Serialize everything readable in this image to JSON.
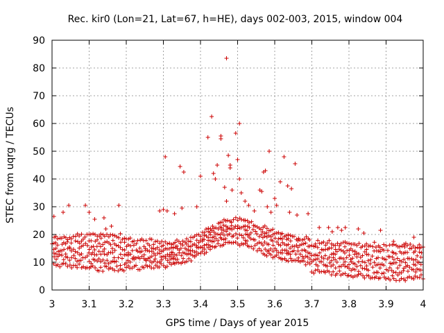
{
  "chart_data": {
    "type": "scatter",
    "title": "Rec. kir0 (Lon=21, Lat=67, h=HE), days 002-003, 2015, window 004",
    "xlabel": "GPS time / Days of year 2015",
    "ylabel": "STEC from uqrg / TECUs",
    "xlim": [
      3,
      4
    ],
    "ylim": [
      0,
      90
    ],
    "xticks": [
      "3",
      "3.1",
      "3.2",
      "3.3",
      "3.4",
      "3.5",
      "3.6",
      "3.7",
      "3.8",
      "3.9",
      "4"
    ],
    "yticks": [
      "0",
      "10",
      "20",
      "30",
      "40",
      "50",
      "60",
      "70",
      "80",
      "90"
    ],
    "grid": true,
    "marker": "plus",
    "color": "#cc0000",
    "outliers": [
      [
        3.005,
        26.5
      ],
      [
        3.03,
        28.0
      ],
      [
        3.045,
        30.5
      ],
      [
        3.09,
        30.5
      ],
      [
        3.1,
        28.0
      ],
      [
        3.115,
        25.5
      ],
      [
        3.14,
        26.0
      ],
      [
        3.145,
        22.0
      ],
      [
        3.18,
        30.5
      ],
      [
        3.16,
        23.0
      ],
      [
        3.29,
        28.5
      ],
      [
        3.3,
        29.0
      ],
      [
        3.305,
        48.0
      ],
      [
        3.31,
        28.5
      ],
      [
        3.33,
        27.5
      ],
      [
        3.345,
        44.5
      ],
      [
        3.355,
        42.5
      ],
      [
        3.35,
        29.5
      ],
      [
        3.4,
        41.0
      ],
      [
        3.39,
        30.0
      ],
      [
        3.42,
        55.0
      ],
      [
        3.43,
        62.5
      ],
      [
        3.435,
        42.0
      ],
      [
        3.44,
        40.0
      ],
      [
        3.445,
        45.0
      ],
      [
        3.455,
        55.5
      ],
      [
        3.455,
        54.5
      ],
      [
        3.47,
        83.5
      ],
      [
        3.475,
        48.5
      ],
      [
        3.48,
        44.0
      ],
      [
        3.48,
        45.0
      ],
      [
        3.465,
        37.0
      ],
      [
        3.47,
        32.0
      ],
      [
        3.485,
        36.0
      ],
      [
        3.495,
        56.5
      ],
      [
        3.5,
        47.0
      ],
      [
        3.505,
        60.0
      ],
      [
        3.505,
        40.0
      ],
      [
        3.51,
        35.0
      ],
      [
        3.52,
        32.0
      ],
      [
        3.53,
        30.5
      ],
      [
        3.545,
        28.5
      ],
      [
        3.56,
        36.0
      ],
      [
        3.565,
        35.5
      ],
      [
        3.57,
        42.5
      ],
      [
        3.575,
        43.0
      ],
      [
        3.58,
        30.0
      ],
      [
        3.585,
        50.0
      ],
      [
        3.59,
        28.0
      ],
      [
        3.6,
        33.0
      ],
      [
        3.605,
        30.5
      ],
      [
        3.615,
        39.0
      ],
      [
        3.625,
        48.0
      ],
      [
        3.635,
        37.5
      ],
      [
        3.645,
        36.5
      ],
      [
        3.655,
        45.5
      ],
      [
        3.64,
        28.0
      ],
      [
        3.66,
        27.0
      ],
      [
        3.69,
        27.5
      ],
      [
        3.72,
        22.5
      ],
      [
        3.745,
        22.5
      ],
      [
        3.755,
        21.0
      ],
      [
        3.77,
        22.5
      ],
      [
        3.78,
        21.5
      ],
      [
        3.79,
        22.5
      ],
      [
        3.825,
        22.0
      ],
      [
        3.84,
        20.5
      ],
      [
        3.885,
        21.5
      ],
      [
        3.92,
        17.5
      ],
      [
        3.95,
        15.5
      ],
      [
        3.965,
        16.5
      ],
      [
        3.975,
        19.0
      ],
      [
        3.99,
        15.0
      ]
    ]
  }
}
